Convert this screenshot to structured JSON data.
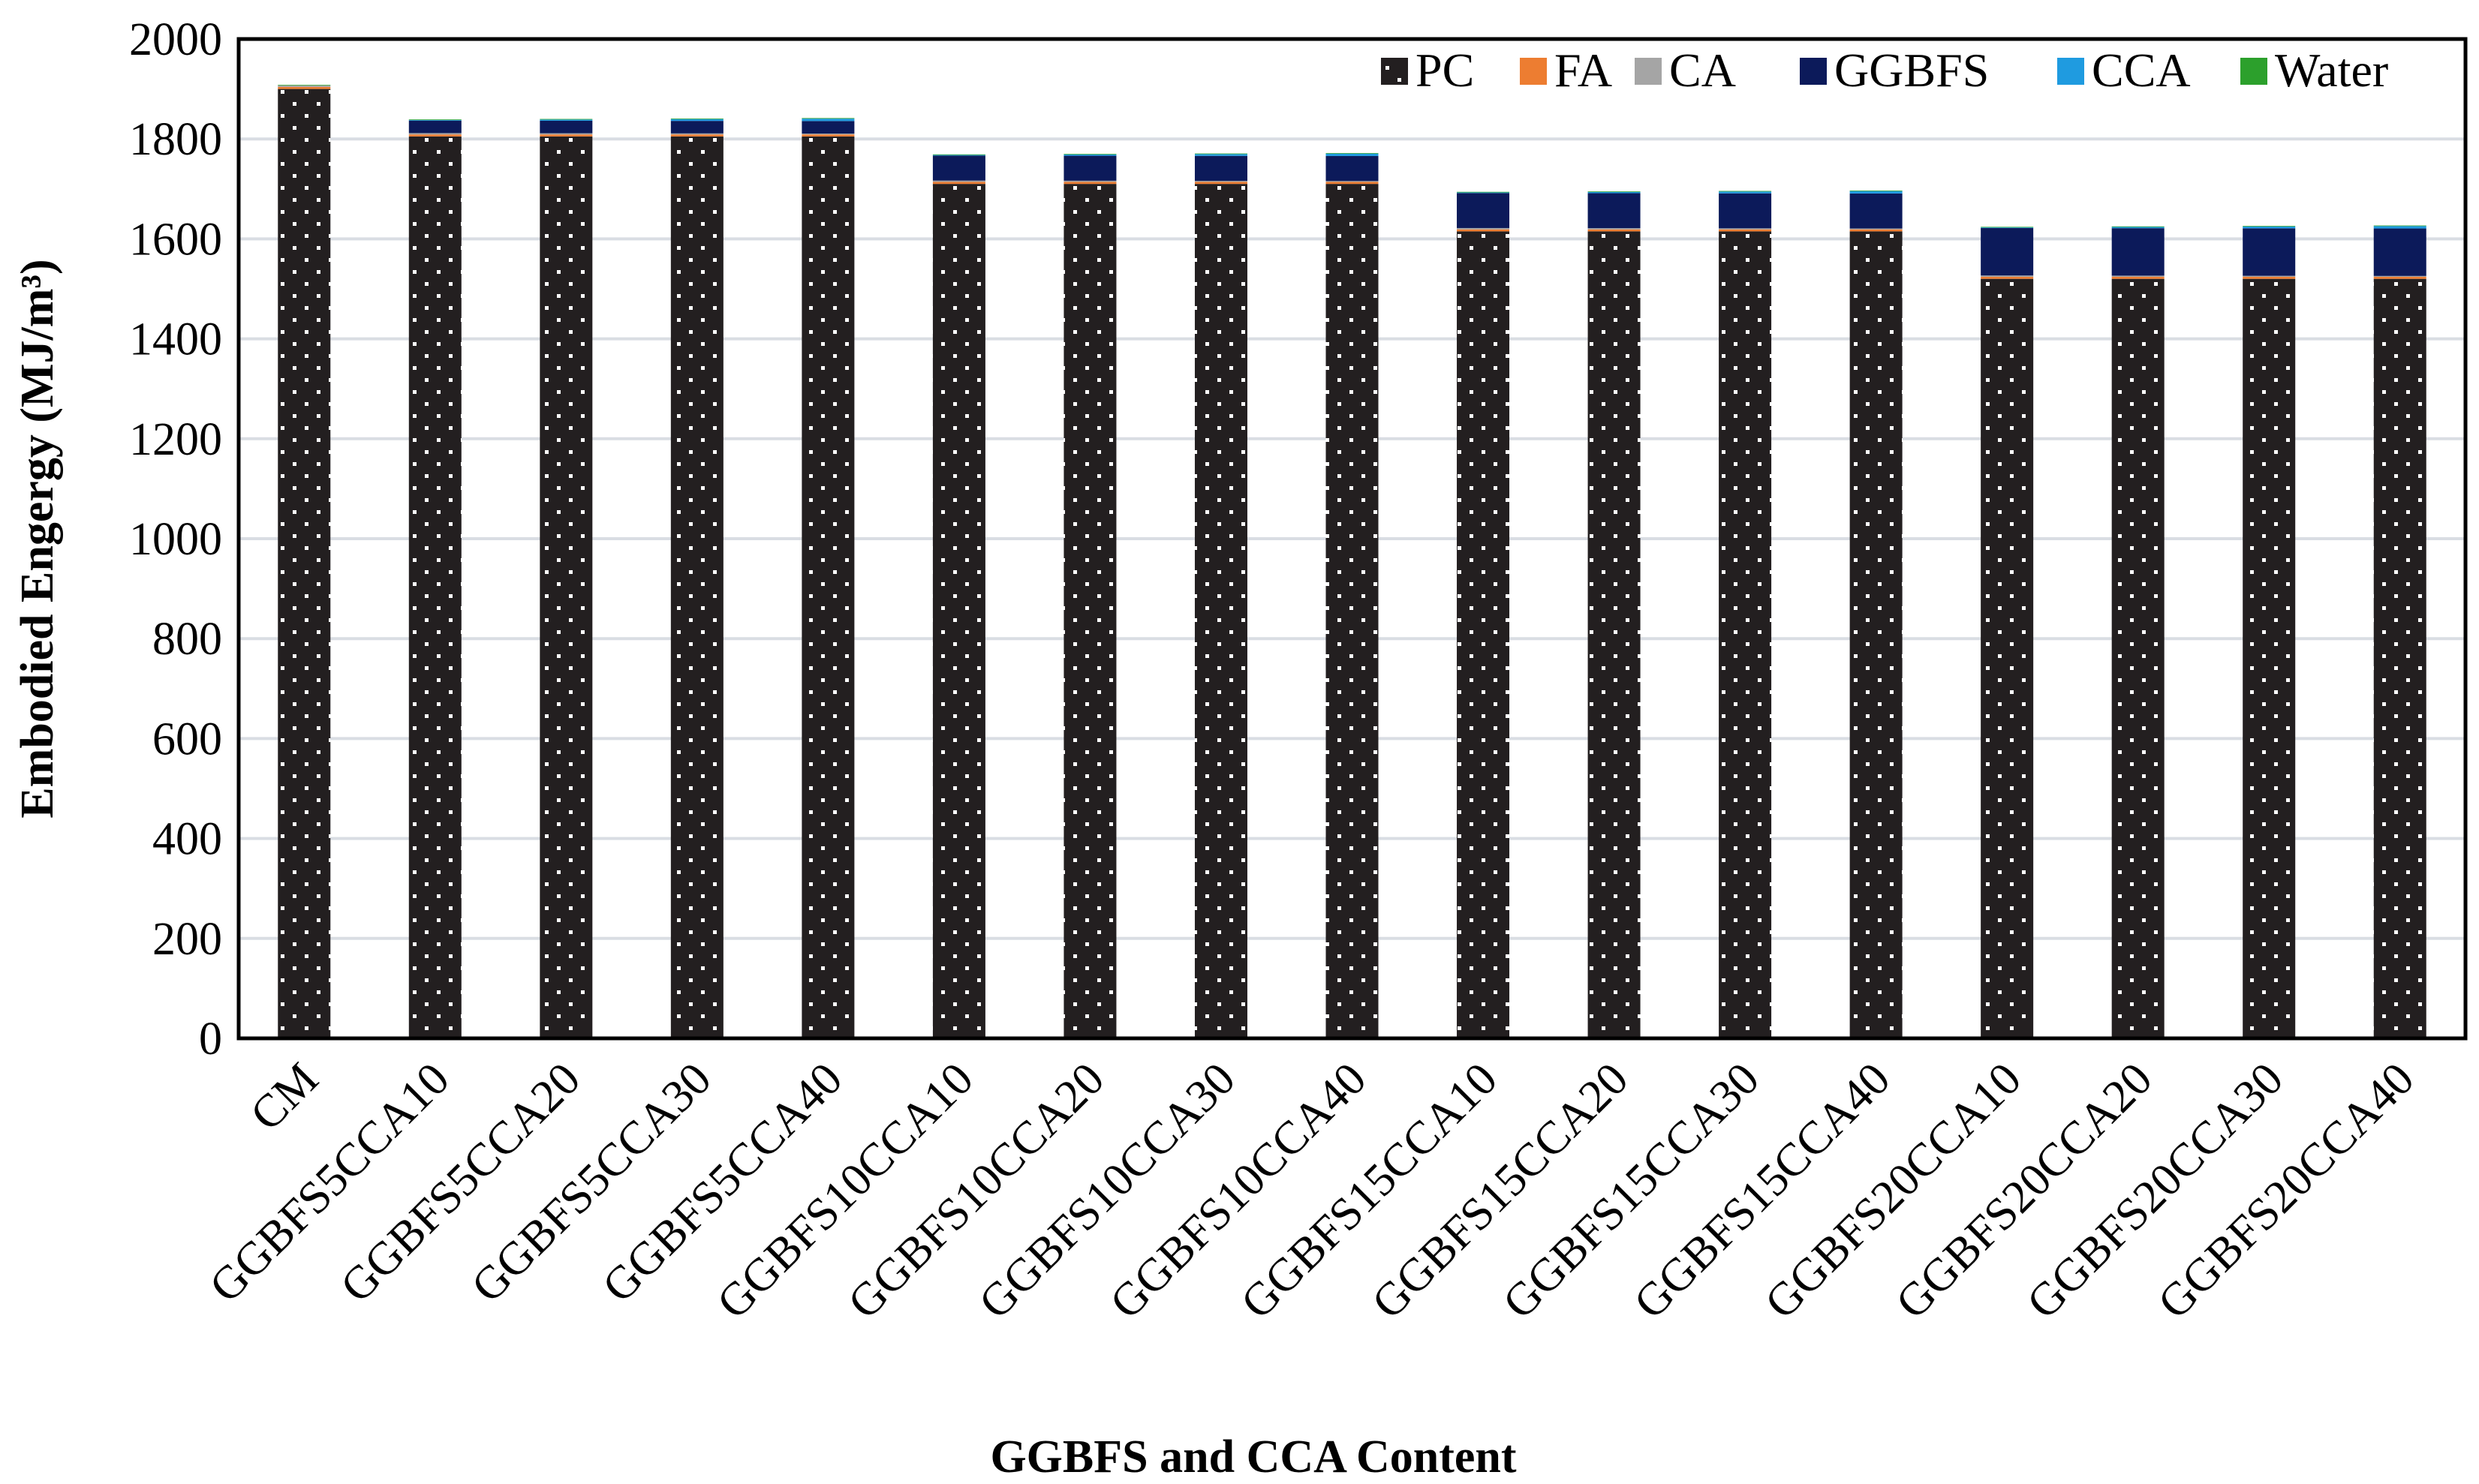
{
  "chart_data": {
    "type": "bar",
    "stacked": true,
    "title": "",
    "xlabel": "GGBFS and CCA Content",
    "ylabel": "Embodied Engergy (MJ/m³)",
    "ylim": [
      0,
      2000
    ],
    "yticks": [
      0,
      200,
      400,
      600,
      800,
      1000,
      1200,
      1400,
      1600,
      1800,
      2000
    ],
    "grid": true,
    "legend_position": "top-right",
    "categories": [
      "CM",
      "GGBFS5CCA10",
      "GGBFS5CCA20",
      "GGBFS5CCA30",
      "GGBFS5CCA40",
      "GGBFS10CCA10",
      "GGBFS10CCA20",
      "GGBFS10CCA30",
      "GGBFS10CCA40",
      "GGBFS15CCA10",
      "GGBFS15CCA20",
      "GGBFS15CCA30",
      "GGBFS15CCA40",
      "GGBFS20CCA10",
      "GGBFS20CCA20",
      "GGBFS20CCA30",
      "GGBFS20CCA40"
    ],
    "series": [
      {
        "name": "PC",
        "color": "#231f20",
        "pattern": "dots",
        "values": [
          1900,
          1805,
          1805,
          1805,
          1805,
          1710,
          1710,
          1710,
          1710,
          1615,
          1615,
          1615,
          1615,
          1520,
          1520,
          1520,
          1520
        ]
      },
      {
        "name": "FA",
        "color": "#ed7d31",
        "values": [
          4,
          4,
          4,
          4,
          4,
          4,
          4,
          4,
          4,
          4,
          4,
          4,
          4,
          4,
          4,
          4,
          4
        ]
      },
      {
        "name": "CA",
        "color": "#a5a5a5",
        "values": [
          3,
          2.7,
          2.4,
          2.1,
          1.8,
          2.7,
          2.4,
          2.1,
          1.8,
          2.7,
          2.4,
          2.1,
          1.8,
          2.7,
          2.4,
          2.1,
          1.8
        ]
      },
      {
        "name": "GGBFS",
        "color": "#0c1a5a",
        "values": [
          0,
          25,
          25,
          25,
          25,
          50,
          50,
          50,
          50,
          70,
          70,
          70,
          70,
          95,
          95,
          95,
          95
        ]
      },
      {
        "name": "CCA",
        "color": "#1f9be0",
        "values": [
          0,
          1.2,
          2.4,
          3.6,
          4.8,
          1.2,
          2.4,
          3.6,
          4.8,
          1.2,
          2.4,
          3.6,
          4.8,
          1.2,
          2.4,
          3.6,
          4.8
        ]
      },
      {
        "name": "Water",
        "color": "#2ca02c",
        "values": [
          0.2,
          0.2,
          0.2,
          0.2,
          0.2,
          0.2,
          0.2,
          0.2,
          0.2,
          0.2,
          0.2,
          0.2,
          0.2,
          0.2,
          0.2,
          0.2,
          0.2
        ]
      }
    ]
  }
}
